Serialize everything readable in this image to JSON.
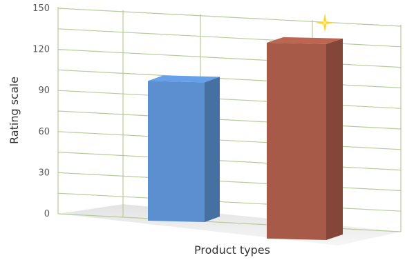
{
  "chart_data": {
    "type": "bar",
    "title": "",
    "xlabel": "Product types",
    "ylabel": "Rating scale",
    "ylim": [
      0,
      150
    ],
    "yticks": [
      0,
      30,
      60,
      90,
      120,
      150
    ],
    "grid": true,
    "legend": "none",
    "categories": [
      "",
      ""
    ],
    "values": [
      102,
      143
    ],
    "bar_colors": [
      "#5b8fd0",
      "#a85a48"
    ],
    "grid_color": "#b6cc9a",
    "highlight": "sparkle on top of second bar"
  }
}
